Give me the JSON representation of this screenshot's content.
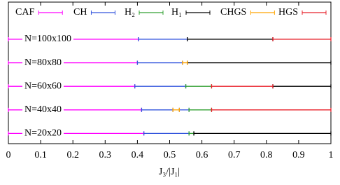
{
  "chart_data": {
    "type": "phase-ranges",
    "x_label": "J₃/|J₁|",
    "xlim": [
      0,
      1
    ],
    "xticks": [
      0,
      0.1,
      0.2,
      0.3,
      0.4,
      0.5,
      0.6,
      0.7,
      0.8,
      0.9,
      1
    ],
    "categories": [
      "N=100x100",
      "N=80x80",
      "N=60x60",
      "N=40x40",
      "N=20x20"
    ],
    "series": [
      {
        "name": "CAF",
        "color": "#ff00ff",
        "values": [
          [
            [
              0,
              0.403
            ]
          ],
          [
            [
              0,
              0.4
            ]
          ],
          [
            [
              0,
              0.392
            ]
          ],
          [
            [
              0,
              0.413
            ]
          ],
          [
            [
              0,
              0.42
            ]
          ]
        ]
      },
      {
        "name": "CH",
        "color": "#3355dd",
        "values": [
          [
            [
              0.403,
              0.555
            ]
          ],
          [
            [
              0.4,
              0.54
            ]
          ],
          [
            [
              0.392,
              0.55
            ]
          ],
          [
            [
              0.413,
              0.51
            ],
            [
              0.53,
              0.56
            ]
          ],
          [
            [
              0.42,
              0.56
            ]
          ]
        ]
      },
      {
        "name": "H₂",
        "color": "#33a033",
        "values": [
          [],
          [],
          [
            [
              0.55,
              0.63
            ]
          ],
          [
            [
              0.56,
              0.63
            ]
          ],
          [
            [
              0.56,
              0.575
            ]
          ]
        ]
      },
      {
        "name": "H₁",
        "color": "#000000",
        "values": [
          [
            [
              0.555,
              0.82
            ]
          ],
          [
            [
              0.555,
              1
            ]
          ],
          [
            [
              0.82,
              1
            ]
          ],
          [],
          [
            [
              0.575,
              1
            ]
          ]
        ]
      },
      {
        "name": "CHGS",
        "color": "#ffa500",
        "values": [
          [],
          [
            [
              0.54,
              0.555
            ]
          ],
          [],
          [
            [
              0.51,
              0.53
            ]
          ],
          []
        ]
      },
      {
        "name": "HGS",
        "color": "#e8202a",
        "values": [
          [
            [
              0.82,
              1
            ]
          ],
          [],
          [
            [
              0.63,
              0.82
            ]
          ],
          [
            [
              0.63,
              1
            ]
          ],
          []
        ]
      }
    ]
  }
}
